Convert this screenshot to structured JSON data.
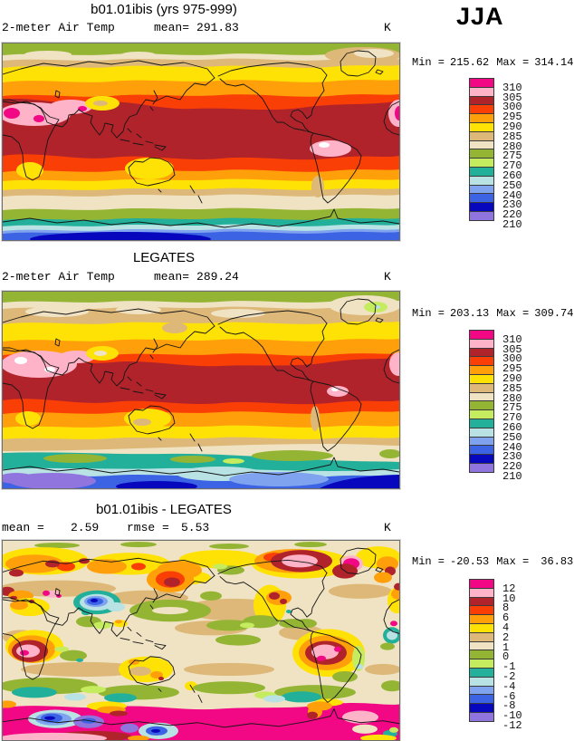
{
  "figure": {
    "season": "JJA",
    "unit": "K"
  },
  "palette": [
    "#F20784",
    "#FFB3C8",
    "#B0232A",
    "#F93E06",
    "#FF9F0A",
    "#FFE205",
    "#DDB878",
    "#F0E3C3",
    "#94B534",
    "#C5EB5F",
    "#22B09B",
    "#B8E2E3",
    "#7FA3EE",
    "#3C63E3",
    "#0707BE",
    "#9175DF"
  ],
  "colorbars": {
    "temp": {
      "levels": [
        "310",
        "305",
        "300",
        "295",
        "290",
        "285",
        "280",
        "275",
        "270",
        "260",
        "250",
        "240",
        "230",
        "220",
        "210"
      ]
    },
    "diff": {
      "levels": [
        "12",
        "10",
        "8",
        "6",
        "4",
        "2",
        "1",
        "0",
        "-1",
        "-2",
        "-4",
        "-6",
        "-8",
        "-10",
        "-12"
      ]
    }
  },
  "panels": [
    {
      "title": "b01.01ibis (yrs 975-999)",
      "variable": "2-meter Air Temp",
      "mean_label": "mean=",
      "mean": "291.83",
      "unit": "K",
      "min_label": "Min =",
      "min": "215.62",
      "max_label": "Max =",
      "max": "314.14",
      "colorbar": "temp"
    },
    {
      "title": "LEGATES",
      "variable": "2-meter Air Temp",
      "mean_label": "mean=",
      "mean": "289.24",
      "unit": "K",
      "min_label": "Min =",
      "min": "203.13",
      "max_label": "Max =",
      "max": "309.74",
      "colorbar": "temp"
    },
    {
      "title": "b01.01ibis - LEGATES",
      "mean_label": "mean =",
      "mean": "2.59",
      "rmse_label": "rmse =",
      "rmse": "5.53",
      "unit": "K",
      "min_label": "Min =",
      "min": "-20.53",
      "max_label": "Max =",
      "max": "36.83",
      "colorbar": "diff"
    }
  ],
  "chart_data": [
    {
      "type": "heatmap",
      "subtype": "global-filled-contour-map",
      "title": "b01.01ibis (yrs 975-999)",
      "variable": "2-meter Air Temp",
      "season": "JJA",
      "units": "K",
      "mean": 291.83,
      "min": 215.62,
      "max": 314.14,
      "contour_levels": [
        210,
        220,
        230,
        240,
        250,
        260,
        270,
        275,
        280,
        285,
        290,
        295,
        300,
        305,
        310
      ],
      "legend_position": "right",
      "projection": "cylindrical-equidistant, Pacific-centered"
    },
    {
      "type": "heatmap",
      "subtype": "global-filled-contour-map",
      "title": "LEGATES",
      "variable": "2-meter Air Temp",
      "season": "JJA",
      "units": "K",
      "mean": 289.24,
      "min": 203.13,
      "max": 309.74,
      "contour_levels": [
        210,
        220,
        230,
        240,
        250,
        260,
        270,
        275,
        280,
        285,
        290,
        295,
        300,
        305,
        310
      ],
      "legend_position": "right",
      "projection": "cylindrical-equidistant, Pacific-centered"
    },
    {
      "type": "heatmap",
      "subtype": "global-filled-contour-map",
      "title": "b01.01ibis - LEGATES",
      "variable": "2-meter Air Temp difference",
      "season": "JJA",
      "units": "K",
      "mean": 2.59,
      "rmse": 5.53,
      "min": -20.53,
      "max": 36.83,
      "contour_levels": [
        -12,
        -10,
        -8,
        -6,
        -4,
        -2,
        -1,
        0,
        1,
        2,
        4,
        6,
        8,
        10,
        12
      ],
      "legend_position": "right",
      "projection": "cylindrical-equidistant, Pacific-centered"
    }
  ]
}
